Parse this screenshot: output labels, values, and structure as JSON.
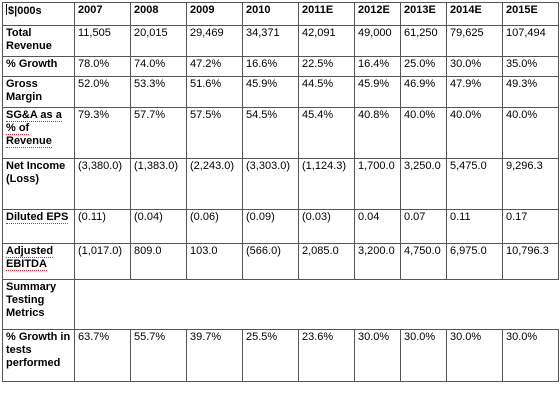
{
  "header": {
    "label": "$|000s",
    "years": [
      "2007",
      "2008",
      "2009",
      "2010",
      "2011E",
      "2012E",
      "2013E",
      "2014E",
      "2015E"
    ]
  },
  "rows": [
    {
      "label": "Total Revenue",
      "values": [
        "11,505",
        "20,015",
        "29,469",
        "34,371",
        "42,091",
        "49,000",
        "61,250",
        "79,625",
        "107,494"
      ]
    },
    {
      "label": "% Growth",
      "values": [
        "78.0%",
        "74.0%",
        "47.2%",
        "16.6%",
        "22.5%",
        "16.4%",
        "25.0%",
        "30.0%",
        "35.0%"
      ]
    },
    {
      "label": "Gross Margin",
      "values": [
        "52.0%",
        "53.3%",
        "51.6%",
        "45.9%",
        "44.5%",
        "45.9%",
        "46.9%",
        "47.9%",
        "49.3%"
      ]
    },
    {
      "label": "SG&A as a % of Revenue",
      "values": [
        "79.3%",
        "57.7%",
        "57.5%",
        "54.5%",
        "45.4%",
        "40.8%",
        "40.0%",
        "40.0%",
        "40.0%"
      ]
    },
    {
      "label": "Net Income (Loss)",
      "values": [
        "(3,380.0)",
        "(1,383.0)",
        "(2,243.0)",
        "(3,303.0)",
        "(1,124.3)",
        "1,700.0",
        "3,250.0",
        "5,475.0",
        "9,296.3"
      ]
    },
    {
      "label": "Diluted EPS",
      "values": [
        "(0.11)",
        "(0.04)",
        "(0.06)",
        "(0.09)",
        "(0.03)",
        "0.04",
        "0.07",
        "0.11",
        "0.17"
      ]
    },
    {
      "label": "Adjusted EBITDA",
      "values": [
        "(1,017.0)",
        "809.0",
        "103.0",
        "(566.0)",
        "2,085.0",
        "3,200.0",
        "4,750.0",
        "6,975.0",
        "10,796.3"
      ]
    }
  ],
  "section": {
    "label": "Summary Testing Metrics"
  },
  "metric_row": {
    "label": "% Growth in tests performed",
    "values": [
      "63.7%",
      "55.7%",
      "39.7%",
      "25.5%",
      "23.6%",
      "30.0%",
      "30.0%",
      "30.0%",
      "30.0%"
    ]
  }
}
